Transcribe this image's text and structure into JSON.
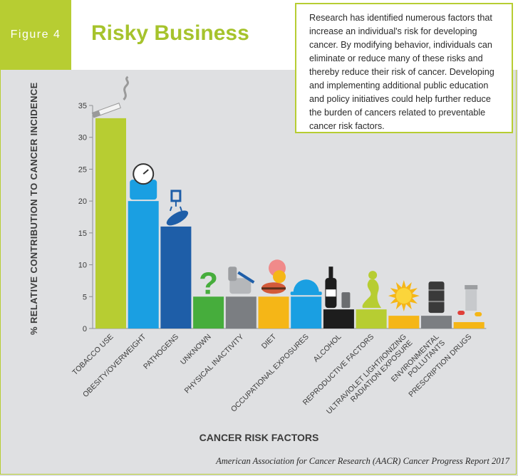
{
  "figure": {
    "label": "Figure 4",
    "title": "Risky Business",
    "intro": "Research has identified numerous factors that increase an individual's risk for developing cancer. By modifying behavior, individuals can eliminate or reduce many of these risks and thereby reduce their risk of cancer. Developing and implementing additional public education and policy initiatives could help further reduce the burden of cancers related to preventable cancer risk factors."
  },
  "chart_data": {
    "type": "bar",
    "title": "",
    "xlabel": "CANCER RISK FACTORS",
    "ylabel": "% RELATIVE CONTRIBUTION TO CANCER INCIDENCE",
    "ylim": [
      0,
      35
    ],
    "yticks": [
      0,
      5,
      10,
      15,
      20,
      25,
      30,
      35
    ],
    "grid": false,
    "categories": [
      "TOBACCO USE",
      "OBESITY/OVERWEIGHT",
      "PATHOGENS",
      "UNKNOWN",
      "PHYSICAL INACTIVITY",
      "DIET",
      "OCCUPATIONAL EXPOSURES",
      "ALCOHOL",
      "REPRODUCTIVE FACTORS",
      "ULTRAVIOLET LIGHT/IONIZING RADIATION EXPOSURE",
      "ENVIRONMENTAL POLLUTANTS",
      "PRESCRIPTION DRUGS"
    ],
    "tick_label_lines": [
      [
        "TOBACCO USE"
      ],
      [
        "OBESITY/OVERWEIGHT"
      ],
      [
        "PATHOGENS"
      ],
      [
        "UNKNOWN"
      ],
      [
        "PHYSICAL INACTIVITY"
      ],
      [
        "DIET"
      ],
      [
        "OCCUPATIONAL EXPOSURES"
      ],
      [
        "ALCOHOL"
      ],
      [
        "REPRODUCTIVE FACTORS"
      ],
      [
        "ULTRAVIOLET LIGHT/IONIZING",
        "RADIATION EXPOSURE"
      ],
      [
        "ENVIRONMENTAL",
        "POLLUTANTS"
      ],
      [
        "PRESCRIPTION DRUGS"
      ]
    ],
    "values": [
      33,
      20,
      16,
      5,
      5,
      5,
      5,
      3,
      3,
      2,
      2,
      1
    ],
    "colors": [
      "#b7cd32",
      "#1a9fe2",
      "#1e5ea8",
      "#46ad3c",
      "#7b7e82",
      "#f5b617",
      "#1a9fe2",
      "#1d1d1d",
      "#b7cd32",
      "#f5b617",
      "#7b7e82",
      "#f5b617"
    ],
    "icons": [
      "cigarette-icon",
      "scale-icon",
      "virus-bacteria-icon",
      "question-mark-icon",
      "recliner-chair-icon",
      "food-icon",
      "hard-hat-icon",
      "wine-bottle-icon",
      "figure-icon",
      "sun-icon",
      "barrel-icon",
      "pill-bottle-icon"
    ]
  },
  "source": "American Association for Cancer Research (AACR) Cancer Progress Report 2017"
}
